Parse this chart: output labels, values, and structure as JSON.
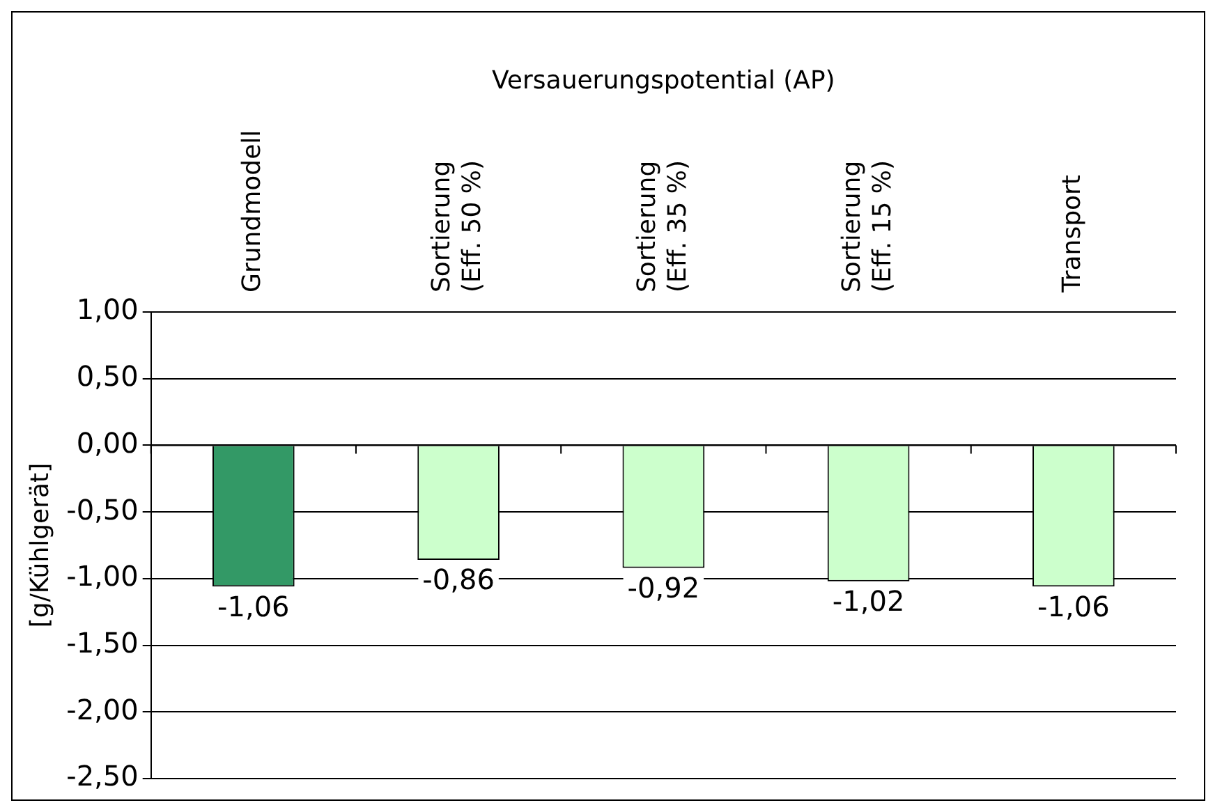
{
  "chart_data": {
    "type": "bar",
    "title": "Versauerungspotential (AP)",
    "ylabel": "[g/Kühlgerät]",
    "categories": [
      "Grundmodell",
      "Sortierung\n(Eff. 50 %)",
      "Sortierung\n(Eff. 35 %)",
      "Sortierung\n(Eff. 15 %)",
      "Transport"
    ],
    "values": [
      -1.06,
      -0.86,
      -0.92,
      -1.02,
      -1.06
    ],
    "colors": [
      "#339966",
      "#ccffcc",
      "#ccffcc",
      "#ccffcc",
      "#ccffcc"
    ],
    "value_labels": [
      "-1,06",
      "-0,86",
      "-0,92",
      "-1,02",
      "-1,06"
    ],
    "ylim": [
      -2.5,
      1
    ],
    "yticks": [
      {
        "value": 1,
        "label": "1,00"
      },
      {
        "value": 0.5,
        "label": "0,50"
      },
      {
        "value": 0,
        "label": "0,00"
      },
      {
        "value": -0.5,
        "label": "-0,50"
      },
      {
        "value": -1,
        "label": "-1,00"
      },
      {
        "value": -1.5,
        "label": "-1,50"
      },
      {
        "value": -2,
        "label": "-2,00"
      },
      {
        "value": -2.5,
        "label": "-2,50"
      }
    ],
    "grid": "y",
    "legend": false
  }
}
